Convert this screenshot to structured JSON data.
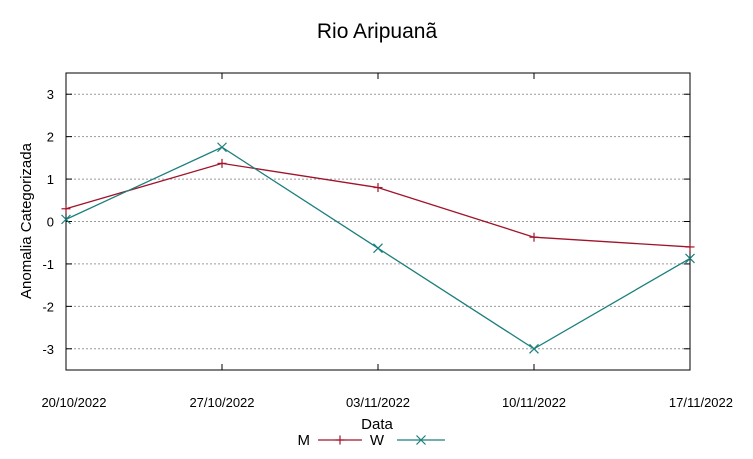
{
  "chart_data": {
    "type": "line",
    "title": "Rio Aripuanã",
    "xlabel": "Data",
    "ylabel": "Anomalia Categorizada",
    "x": [
      "20/10/2022",
      "27/10/2022",
      "03/11/2022",
      "10/11/2022",
      "17/11/2022"
    ],
    "ylim": [
      -3.5,
      3.5
    ],
    "yticks": [
      -3,
      -2,
      -1,
      0,
      1,
      2,
      3
    ],
    "grid": true,
    "legend": "bottom-center",
    "series": [
      {
        "name": "M",
        "color": "#a0142a",
        "marker": "plus",
        "values": [
          0.3,
          1.37,
          0.8,
          -0.37,
          -0.6
        ]
      },
      {
        "name": "W",
        "color": "#1b7f7c",
        "marker": "cross",
        "values": [
          0.05,
          1.75,
          -0.63,
          -3.0,
          -0.87
        ]
      }
    ]
  }
}
